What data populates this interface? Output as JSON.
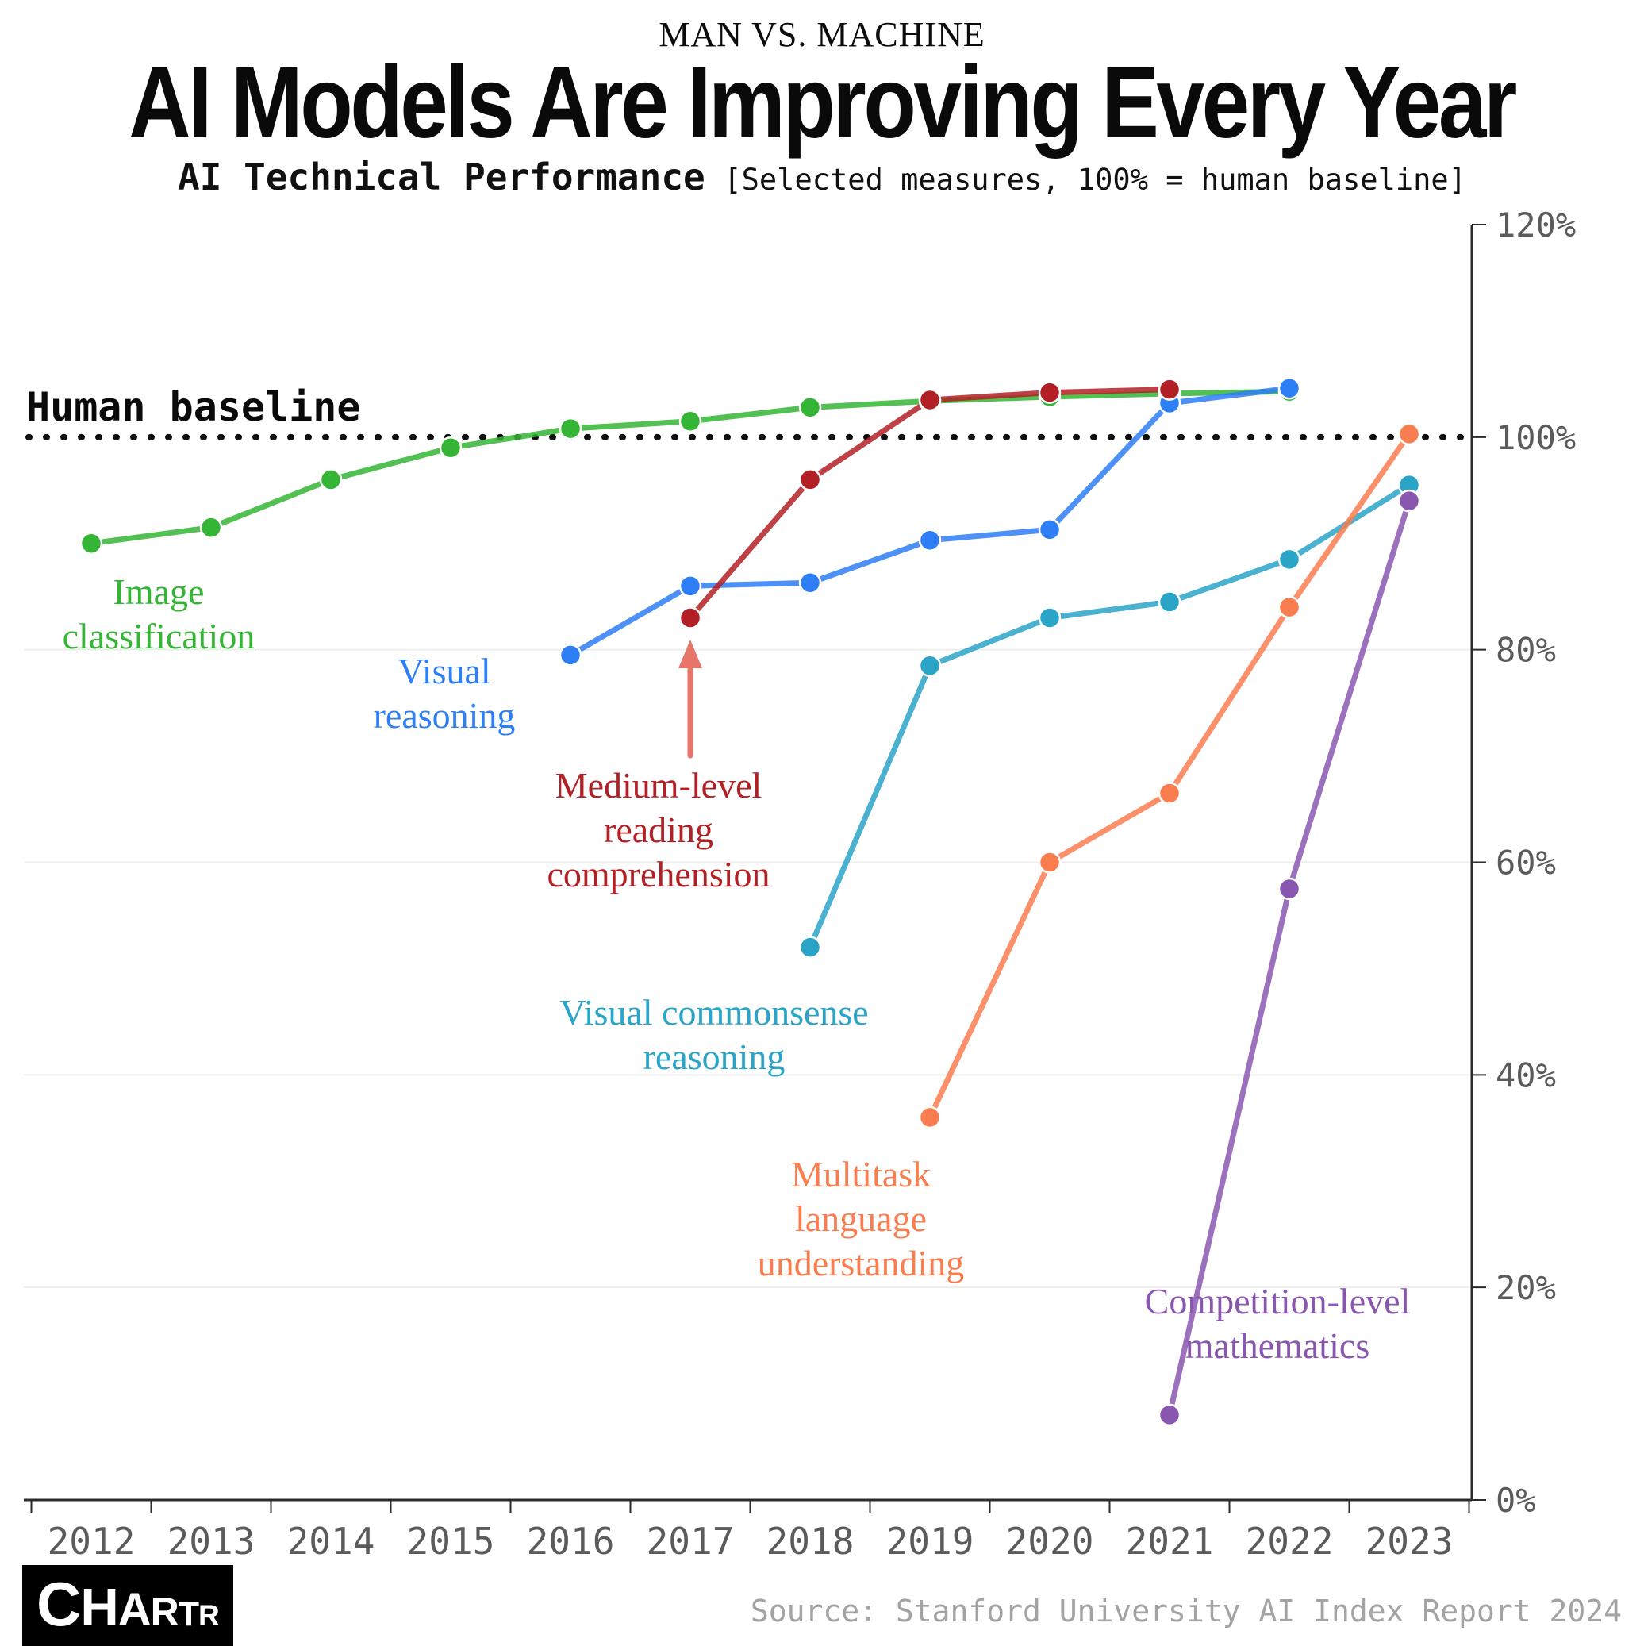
{
  "header": {
    "kicker": "MAN VS. MACHINE",
    "title": "AI Models Are Improving Every Year",
    "subtitle_bold": "AI Technical Performance",
    "subtitle_note": "[Selected measures, 100% = human baseline]"
  },
  "chart_data": {
    "type": "line",
    "title": "AI Technical Performance",
    "subtitle": "Selected measures, 100% = human baseline",
    "x_ticks": [
      2012,
      2013,
      2014,
      2015,
      2016,
      2017,
      2018,
      2019,
      2020,
      2021,
      2022,
      2023
    ],
    "y_ticks": [
      0,
      20,
      40,
      60,
      80,
      100,
      120
    ],
    "y_tick_suffix": "%",
    "ylim": [
      0,
      120
    ],
    "grid": "horizontal",
    "human_baseline_value": 100,
    "series": [
      {
        "id": "image-classification",
        "name": "Image classification",
        "color": "#35b535",
        "points": [
          [
            2012,
            90
          ],
          [
            2013,
            91.5
          ],
          [
            2014,
            96
          ],
          [
            2015,
            99
          ],
          [
            2016,
            100.8
          ],
          [
            2017,
            101.5
          ],
          [
            2018,
            102.8
          ],
          [
            2019,
            103.4
          ],
          [
            2020,
            103.8
          ],
          [
            2021,
            104.1
          ],
          [
            2022,
            104.3
          ]
        ]
      },
      {
        "id": "visual-reasoning",
        "name": "Visual reasoning",
        "color": "#2e7ef5",
        "points": [
          [
            2016,
            79.5
          ],
          [
            2017,
            86
          ],
          [
            2018,
            86.3
          ],
          [
            2019,
            90.3
          ],
          [
            2020,
            91.3
          ],
          [
            2021,
            103.2
          ],
          [
            2022,
            104.6
          ]
        ]
      },
      {
        "id": "reading-comprehension",
        "name": "Medium-level reading comprehension",
        "color": "#b22025",
        "points": [
          [
            2017,
            83
          ],
          [
            2018,
            96
          ],
          [
            2019,
            103.5
          ],
          [
            2020,
            104.2
          ],
          [
            2021,
            104.5
          ]
        ]
      },
      {
        "id": "visual-commonsense",
        "name": "Visual commonsense reasoning",
        "color": "#2aa5c8",
        "points": [
          [
            2018,
            52
          ],
          [
            2019,
            78.5
          ],
          [
            2020,
            83
          ],
          [
            2021,
            84.5
          ],
          [
            2022,
            88.5
          ],
          [
            2023,
            95.5
          ]
        ]
      },
      {
        "id": "multitask-language",
        "name": "Multitask language understanding",
        "color": "#fa7d50",
        "points": [
          [
            2019,
            36
          ],
          [
            2020,
            60
          ],
          [
            2021,
            66.5
          ],
          [
            2022,
            84
          ],
          [
            2023,
            100.3
          ]
        ]
      },
      {
        "id": "competition-math",
        "name": "Competition-level mathematics",
        "color": "#8a57b0",
        "points": [
          [
            2021,
            8
          ],
          [
            2022,
            57.5
          ],
          [
            2023,
            94
          ]
        ]
      }
    ]
  },
  "annotations": {
    "human_baseline": "Human baseline",
    "image_classification": "Image\nclassification",
    "visual_reasoning": "Visual\nreasoning",
    "reading_comprehension": "Medium-level\nreading\ncomprehension",
    "visual_commonsense": "Visual commonsense\nreasoning",
    "multitask_language": "Multitask\nlanguage\nunderstanding",
    "competition_math": "Competition-level\nmathematics",
    "arrow_color": "#e8756a"
  },
  "footer": {
    "logo": "CHARTR",
    "source": "Source: Stanford University AI Index Report 2024"
  }
}
